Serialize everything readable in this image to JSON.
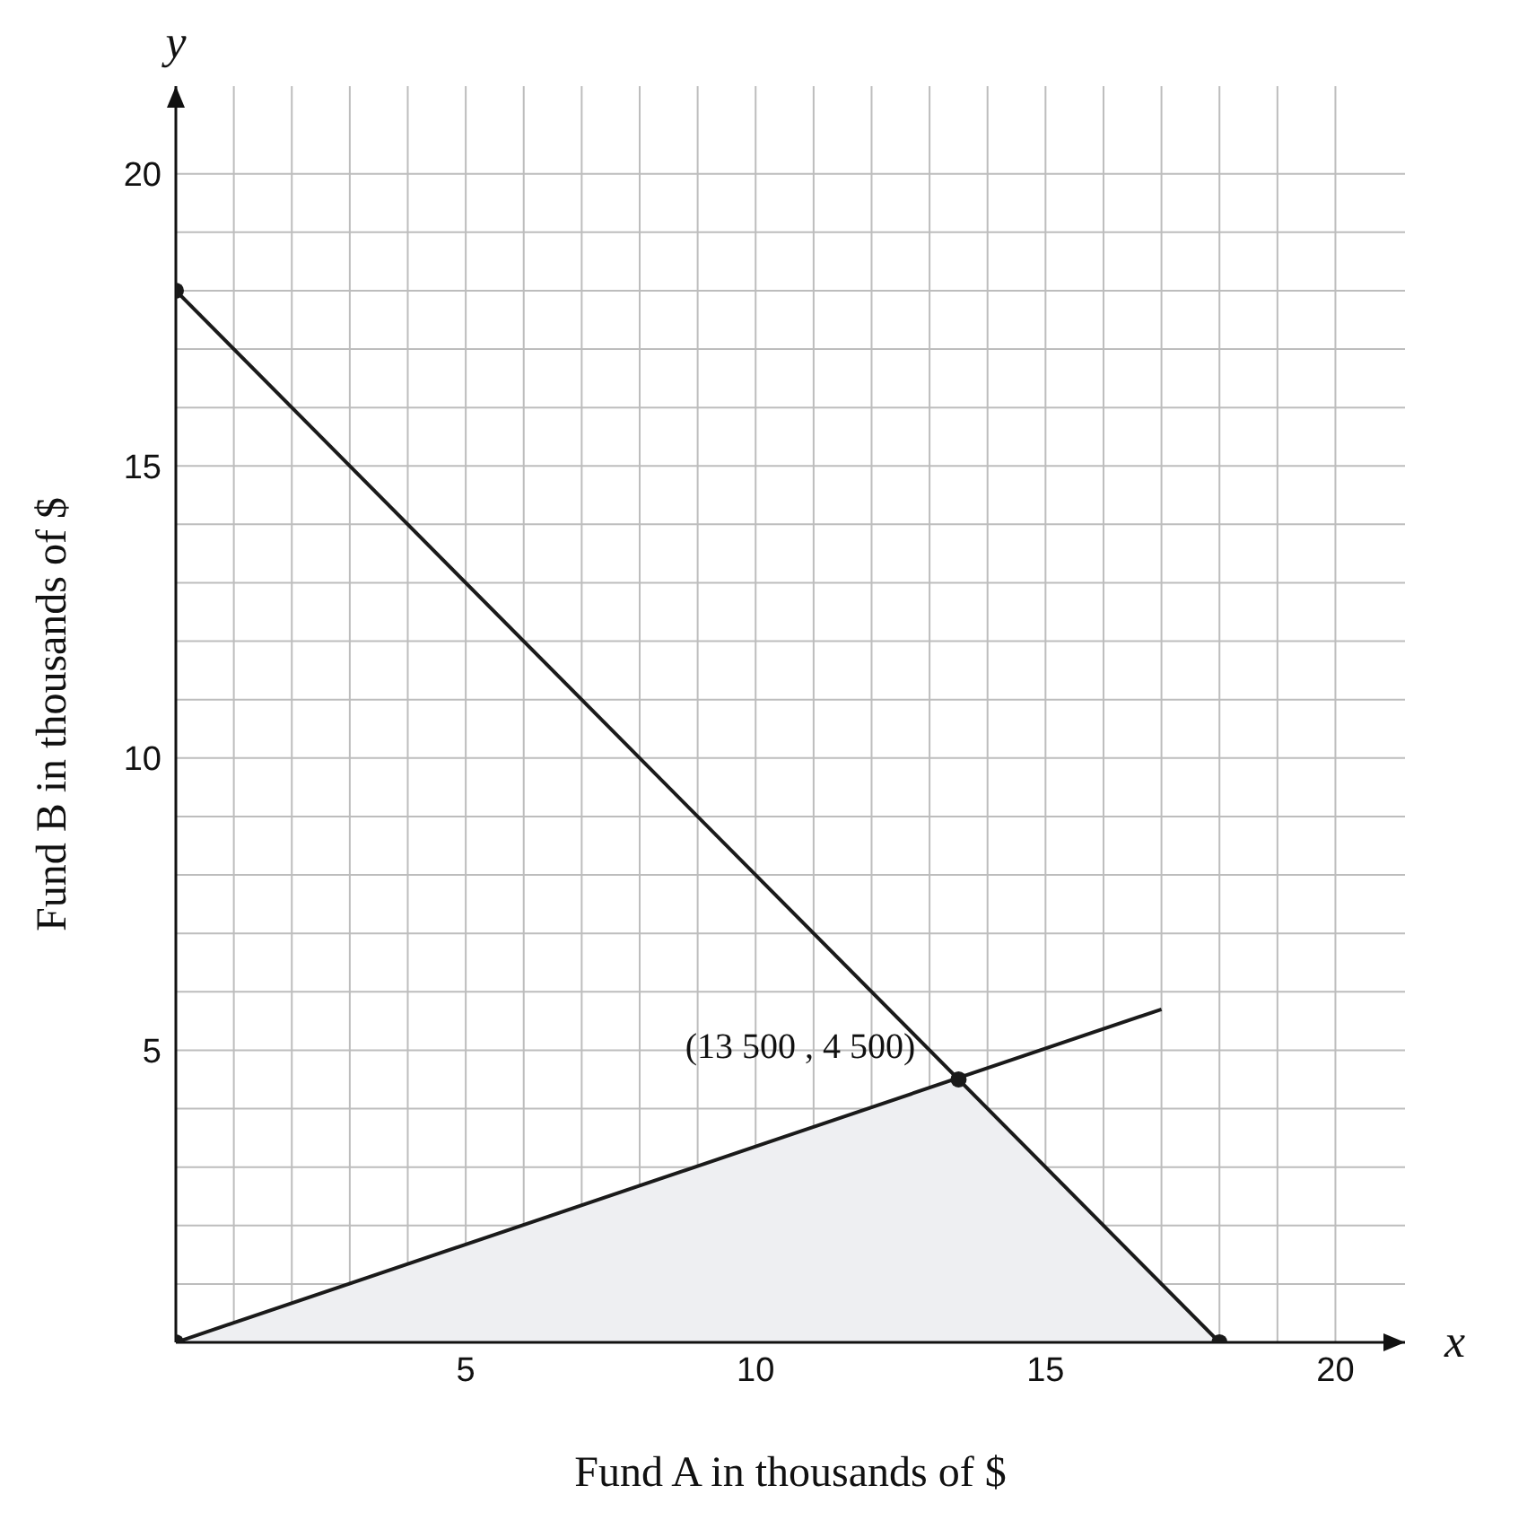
{
  "chart_data": {
    "type": "line",
    "xlabel": "Fund A in thousands of $",
    "ylabel": "Fund B in thousands of $",
    "xlim": [
      0,
      21.2
    ],
    "ylim": [
      0,
      21.5
    ],
    "xticks": [
      {
        "value": 1,
        "label": null
      },
      {
        "value": 2,
        "label": null
      },
      {
        "value": 3,
        "label": null
      },
      {
        "value": 4,
        "label": null
      },
      5,
      {
        "value": 6,
        "label": null
      },
      {
        "value": 7,
        "label": null
      },
      {
        "value": 8,
        "label": null
      },
      {
        "value": 9,
        "label": null
      },
      10,
      {
        "value": 11,
        "label": null
      },
      {
        "value": 12,
        "label": null
      },
      {
        "value": 13,
        "label": null
      },
      {
        "value": 14,
        "label": null
      },
      15,
      {
        "value": 16,
        "label": null
      },
      {
        "value": 17,
        "label": null
      },
      {
        "value": 18,
        "label": null
      },
      {
        "value": 19,
        "label": null
      },
      20
    ],
    "yticks": [
      {
        "value": 1,
        "label": null
      },
      {
        "value": 2,
        "label": null
      },
      {
        "value": 3,
        "label": null
      },
      {
        "value": 4,
        "label": null
      },
      5,
      {
        "value": 6,
        "label": null
      },
      {
        "value": 7,
        "label": null
      },
      {
        "value": 8,
        "label": null
      },
      {
        "value": 9,
        "label": null
      },
      10,
      {
        "value": 11,
        "label": null
      },
      {
        "value": 12,
        "label": null
      },
      {
        "value": 13,
        "label": null
      },
      {
        "value": 14,
        "label": null
      },
      15,
      {
        "value": 16,
        "label": null
      },
      {
        "value": 17,
        "label": null
      },
      {
        "value": 18,
        "label": null
      },
      {
        "value": 19,
        "label": null
      },
      20
    ],
    "grid": true,
    "line_style": "solid",
    "series": [
      {
        "type": "area",
        "color": "#eeeff2",
        "marker": "none",
        "x": [
          0,
          13.5,
          18
        ],
        "values": [
          0,
          4.5,
          0
        ]
      },
      {
        "color": "#1a1a1a",
        "marker": "none",
        "x": [
          0,
          18
        ],
        "values": [
          18,
          0
        ]
      },
      {
        "color": "#1a1a1a",
        "marker": "none",
        "x": [
          0,
          17
        ],
        "values": [
          0,
          5.7
        ]
      },
      {
        "type": "scatter",
        "color": "#1a1a1a",
        "marker": "circle",
        "x": [
          0,
          0,
          13.5,
          18
        ],
        "values": [
          18,
          0,
          4.5,
          0
        ]
      }
    ],
    "annotations": [
      {
        "text": "(13 500 , 4 500)",
        "x": 13.5,
        "y": 4.5
      },
      "x",
      "y"
    ]
  }
}
